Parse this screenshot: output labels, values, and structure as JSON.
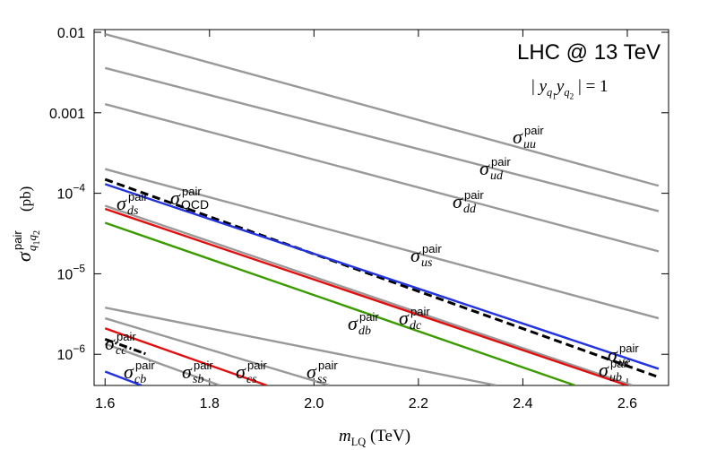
{
  "chart_data": {
    "type": "line",
    "title": "LHC @ 13 TeV",
    "annotation": [
      {
        "text": "| ",
        "level": "base",
        "italic": false
      },
      {
        "text": "y",
        "level": "base",
        "italic": true
      },
      {
        "text": "q",
        "level": "sub",
        "italic": true
      },
      {
        "text": "1",
        "level": "subsub",
        "italic": false
      },
      {
        "text": "y",
        "level": "base",
        "italic": true
      },
      {
        "text": "q",
        "level": "sub",
        "italic": true
      },
      {
        "text": "2",
        "level": "subsub",
        "italic": false
      },
      {
        "text": " | = 1",
        "level": "base",
        "italic": false
      }
    ],
    "xlabel": [
      {
        "text": "m",
        "level": "base",
        "italic": true
      },
      {
        "text": "LQ",
        "level": "sub",
        "italic": false
      },
      {
        "text": "  (TeV)",
        "level": "base",
        "italic": false
      }
    ],
    "ylabel": {
      "symbol": "σ",
      "superscript": "pair",
      "subscript": [
        {
          "text": "q",
          "level": "sub",
          "italic": true
        },
        {
          "text": "1",
          "level": "subsub",
          "italic": false
        },
        {
          "text": "q",
          "level": "sub",
          "italic": true
        },
        {
          "text": "2",
          "level": "subsub",
          "italic": false
        }
      ],
      "unit": "(pb)"
    },
    "xlim": [
      1.579,
      2.679
    ],
    "ylim": [
      4.1e-07,
      0.0108
    ],
    "log_y": true,
    "xticks": [
      1.6,
      1.8,
      {
        "value": 2,
        "label": "2.0"
      },
      2.2,
      2.4,
      2.6
    ],
    "yticks": [
      {
        "value": 1e-06,
        "label": "10",
        "exponent": "−6"
      },
      {
        "value": 1e-05,
        "label": "10",
        "exponent": "−5"
      },
      {
        "value": 0.0001,
        "label": "10",
        "exponent": "−4"
      },
      0.001,
      0.01
    ],
    "series": [
      {
        "name": "σ",
        "superscript": "pair",
        "subscript": "uu",
        "color": "#999999",
        "dash": "solid",
        "x": [
          1.6,
          2.66
        ],
        "values": [
          0.0095,
          0.000124
        ]
      },
      {
        "name": "σ",
        "superscript": "pair",
        "subscript": "ud",
        "color": "#999999",
        "dash": "solid",
        "x": [
          1.6,
          2.66
        ],
        "values": [
          0.0036,
          6e-05
        ]
      },
      {
        "name": "σ",
        "superscript": "pair",
        "subscript": "dd",
        "color": "#999999",
        "dash": "solid",
        "x": [
          1.6,
          2.66
        ],
        "values": [
          0.00128,
          1.9e-05
        ]
      },
      {
        "name": "σ",
        "superscript": "pair",
        "subscript": "us",
        "color": "#999999",
        "dash": "solid",
        "x": [
          1.6,
          2.66
        ],
        "values": [
          0.0002,
          2.8e-06
        ]
      },
      {
        "name": "σ",
        "superscript": "pair",
        "subscript": "ds",
        "color": "#999999",
        "dash": "solid",
        "x": [
          1.6,
          2.61
        ],
        "values": [
          7e-05,
          4.1e-07
        ]
      },
      {
        "name": "σ",
        "superscript": "pair",
        "subscript": "ub",
        "color": "#e01010",
        "dash": "solid",
        "x": [
          1.6,
          2.6
        ],
        "values": [
          6.4e-05,
          4.1e-07
        ]
      },
      {
        "name": "σ",
        "superscript": "pair",
        "subscript": "QCD",
        "color": "#000000",
        "dash": "dashed",
        "x": [
          1.6,
          2.66
        ],
        "values": [
          0.000149,
          5.2e-07
        ]
      },
      {
        "name": "σ",
        "superscript": "pair",
        "subscript": "uc",
        "color": "#2233dd",
        "dash": "solid",
        "x": [
          1.6,
          2.66
        ],
        "values": [
          0.00013,
          6.6e-07
        ]
      },
      {
        "name": "σ",
        "superscript": "pair",
        "subscript": "dc",
        "color": "#3a9a00",
        "dash": "solid",
        "x": [
          1.6,
          2.5
        ],
        "values": [
          4.3e-05,
          4.1e-07
        ]
      },
      {
        "name": "σ",
        "superscript": "pair",
        "subscript": "db",
        "color": "#999999",
        "dash": "solid",
        "x": [
          1.6,
          2.35
        ],
        "values": [
          3.8e-06,
          4.1e-07
        ]
      },
      {
        "name": "σ",
        "superscript": "pair",
        "subscript": "ss",
        "color": "#999999",
        "dash": "solid",
        "x": [
          1.6,
          2.03
        ],
        "values": [
          2.8e-06,
          4.1e-07
        ]
      },
      {
        "name": "σ",
        "superscript": "pair",
        "subscript": "cs",
        "color": "#e01010",
        "dash": "solid",
        "x": [
          1.6,
          1.91
        ],
        "values": [
          2.1e-06,
          4.1e-07
        ]
      },
      {
        "name": "σ",
        "superscript": "pair",
        "subscript": "sb",
        "color": "#999999",
        "dash": "solid",
        "x": [
          1.6,
          1.82
        ],
        "values": [
          1.35e-06,
          4.1e-07
        ]
      },
      {
        "name": "σ",
        "superscript": "pair",
        "subscript": "cc",
        "color": "#000000",
        "dash": "dashdot",
        "x": [
          1.6,
          1.68
        ],
        "values": [
          1.54e-06,
          1e-06
        ]
      },
      {
        "name": "σ",
        "superscript": "pair",
        "subscript": "cb",
        "color": "#2233dd",
        "dash": "solid",
        "x": [
          1.6,
          1.67
        ],
        "values": [
          6.1e-07,
          4.1e-07
        ]
      }
    ]
  }
}
